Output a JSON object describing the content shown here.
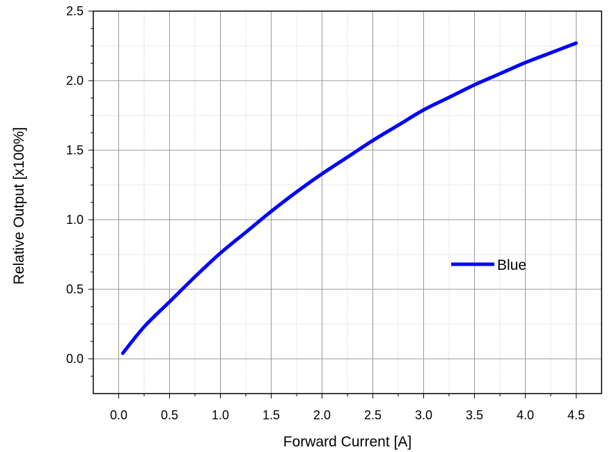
{
  "chart_data": {
    "type": "line",
    "xlabel": "Forward Current [A]",
    "ylabel": "Relative Output [x100%]",
    "xlim": [
      -0.25,
      4.75
    ],
    "ylim": [
      -0.25,
      2.5
    ],
    "x_ticks": [
      0.0,
      0.5,
      1.0,
      1.5,
      2.0,
      2.5,
      3.0,
      3.5,
      4.0,
      4.5
    ],
    "x_tick_labels": [
      "0.0",
      "0.5",
      "1.0",
      "1.5",
      "2.0",
      "2.5",
      "3.0",
      "3.5",
      "4.0",
      "4.5"
    ],
    "y_ticks": [
      0.0,
      0.5,
      1.0,
      1.5,
      2.0,
      2.5
    ],
    "y_tick_labels": [
      "0.0",
      "0.5",
      "1.0",
      "1.5",
      "2.0",
      "2.5"
    ],
    "grid": true,
    "legend_position": "right-middle",
    "series": [
      {
        "name": "Blue",
        "color": "#0000ff",
        "x": [
          0.04,
          0.25,
          0.5,
          0.75,
          1.0,
          1.25,
          1.5,
          1.75,
          2.0,
          2.25,
          2.5,
          2.75,
          3.0,
          3.25,
          3.5,
          3.75,
          4.0,
          4.25,
          4.5
        ],
        "y": [
          0.04,
          0.23,
          0.41,
          0.59,
          0.76,
          0.91,
          1.06,
          1.2,
          1.33,
          1.45,
          1.57,
          1.68,
          1.79,
          1.88,
          1.97,
          2.05,
          2.13,
          2.2,
          2.27
        ]
      }
    ]
  }
}
